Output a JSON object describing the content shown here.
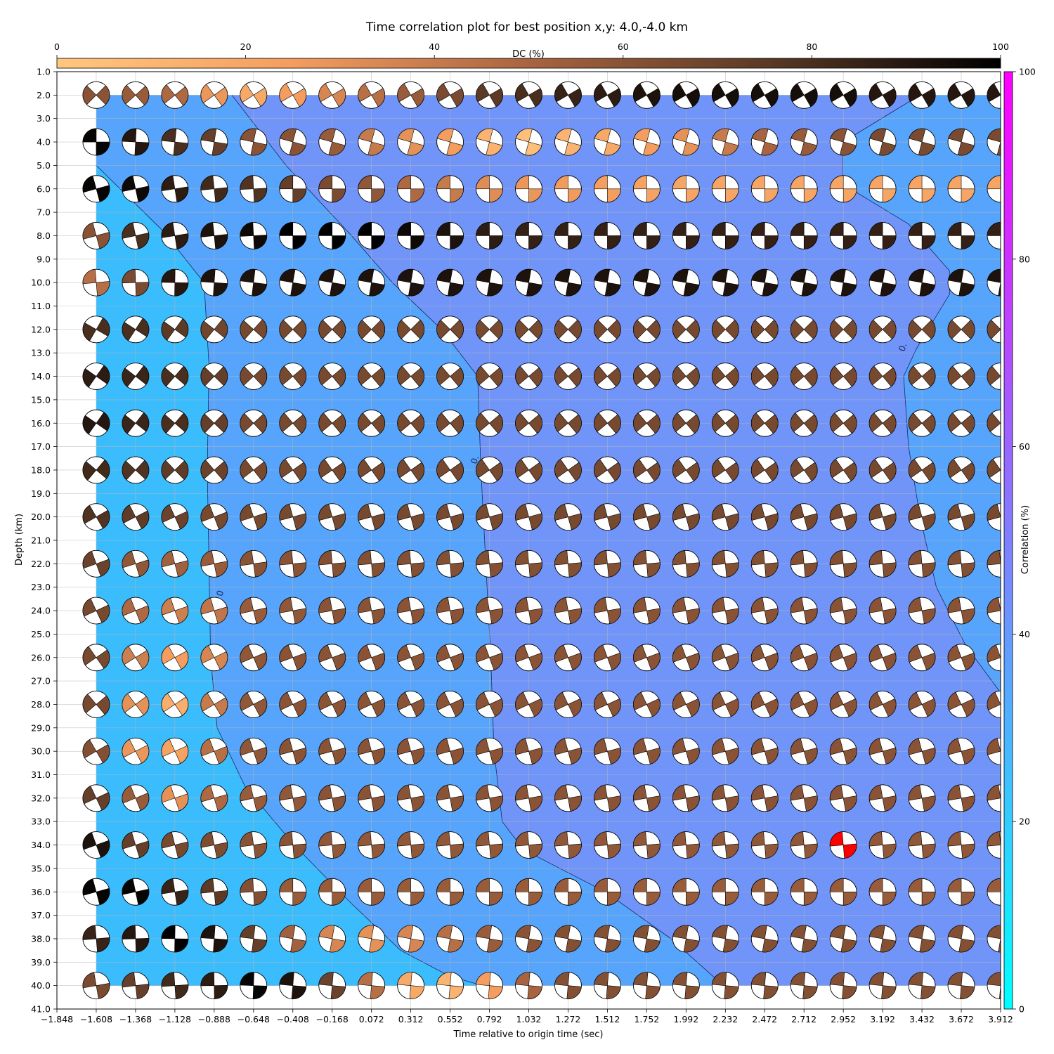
{
  "chart_data": {
    "type": "heatmap",
    "title": "Time correlation plot for best position x,y: 4.0,-4.0 km",
    "xlabel": "Time relative to origin time (sec)",
    "ylabel": "Depth (km)",
    "xlim": [
      -1.848,
      3.912
    ],
    "ylim": [
      41.0,
      1.0
    ],
    "y_inverted": true,
    "grid": true,
    "x_ticks": [
      "−1.848",
      "−1.608",
      "−1.368",
      "−1.128",
      "−0.888",
      "−0.648",
      "−0.408",
      "−0.168",
      "0.072",
      "0.312",
      "0.552",
      "0.792",
      "1.032",
      "1.272",
      "1.512",
      "1.752",
      "1.992",
      "2.232",
      "2.472",
      "2.712",
      "2.952",
      "3.192",
      "3.432",
      "3.672",
      "3.912"
    ],
    "y_ticks": [
      "1.0",
      "2.0",
      "3.0",
      "4.0",
      "5.0",
      "6.0",
      "7.0",
      "8.0",
      "9.0",
      "10.0",
      "11.0",
      "12.0",
      "13.0",
      "14.0",
      "15.0",
      "16.0",
      "17.0",
      "18.0",
      "19.0",
      "20.0",
      "21.0",
      "22.0",
      "23.0",
      "24.0",
      "25.0",
      "26.0",
      "27.0",
      "28.0",
      "29.0",
      "30.0",
      "31.0",
      "32.0",
      "33.0",
      "34.0",
      "35.0",
      "36.0",
      "37.0",
      "38.0",
      "39.0",
      "40.0",
      "41.0"
    ],
    "time_grid": [
      -1.608,
      -1.368,
      -1.128,
      -0.888,
      -0.648,
      -0.408,
      -0.168,
      0.072,
      0.312,
      0.552,
      0.792,
      1.032,
      1.272,
      1.512,
      1.752,
      1.992,
      2.232,
      2.472,
      2.712,
      2.952,
      3.192,
      3.432,
      3.672,
      3.912
    ],
    "depth_grid": [
      2,
      4,
      6,
      8,
      10,
      12,
      14,
      16,
      18,
      20,
      22,
      24,
      26,
      28,
      30,
      32,
      34,
      36,
      38,
      40
    ],
    "correlation_colorbar": {
      "label": "Correlation (%)",
      "range": [
        0,
        100
      ],
      "ticks": [
        "0",
        "20",
        "40",
        "60",
        "80",
        "100"
      ],
      "colors": [
        "#00ffff",
        "#ff00ff"
      ]
    },
    "dc_colorbar": {
      "label": "DC (%)",
      "range": [
        0,
        100
      ],
      "ticks": [
        "0",
        "20",
        "40",
        "60",
        "80",
        "100"
      ],
      "colors": [
        "#ffc77f",
        "#f49d5f",
        "#a86440",
        "#5c3a26",
        "#000000"
      ]
    },
    "correlation_zones": [
      {
        "correlation_pct": 30,
        "color": "#3bbcfc",
        "boundary": [
          [
            -1.608,
            5.0
          ],
          [
            -1.2,
            7.8
          ],
          [
            -0.95,
            10.0
          ],
          [
            -0.92,
            13.5
          ],
          [
            -0.93,
            18.0
          ],
          [
            -0.92,
            22.0
          ],
          [
            -0.91,
            26.0
          ],
          [
            -0.87,
            29.0
          ],
          [
            -0.7,
            31.5
          ],
          [
            -0.4,
            34.0
          ],
          [
            -0.05,
            36.5
          ],
          [
            0.25,
            38.5
          ],
          [
            0.55,
            39.6
          ],
          [
            0.75,
            40.0
          ]
        ]
      },
      {
        "correlation_pct": 40,
        "color": "#56a4fb",
        "boundary": [
          [
            -0.78,
            2.0
          ],
          [
            -0.45,
            5.0
          ],
          [
            -0.05,
            8.0
          ],
          [
            0.2,
            10.0
          ],
          [
            0.5,
            12.0
          ],
          [
            0.72,
            14.0
          ],
          [
            0.74,
            18.0
          ],
          [
            0.77,
            22.0
          ],
          [
            0.8,
            26.0
          ],
          [
            0.82,
            30.0
          ],
          [
            0.87,
            33.0
          ],
          [
            1.0,
            34.2
          ],
          [
            1.5,
            36.0
          ],
          [
            1.9,
            38.0
          ],
          [
            2.22,
            40.0
          ]
        ]
      },
      {
        "correlation_pct": 48,
        "color": "#7094f8"
      },
      {
        "correlation_pct": 40,
        "color": "#56a4fb",
        "right_region": true,
        "boundary": [
          [
            3.42,
            2.0
          ],
          [
            2.95,
            4.0
          ],
          [
            2.95,
            5.8
          ],
          [
            3.35,
            7.5
          ],
          [
            3.6,
            9.5
          ],
          [
            3.6,
            10.5
          ],
          [
            3.4,
            12.8
          ],
          [
            3.32,
            14.0
          ],
          [
            3.35,
            17.0
          ],
          [
            3.42,
            20.0
          ],
          [
            3.52,
            23.0
          ],
          [
            3.7,
            25.5
          ],
          [
            3.912,
            27.5
          ]
        ]
      }
    ],
    "contour_labels": [
      {
        "text": "0.",
        "x": 3.332,
        "y": 12.8
      },
      {
        "text": "0.",
        "x": 0.72,
        "y": 17.6
      },
      {
        "text": "0",
        "x": -0.835,
        "y": 23.3
      }
    ],
    "best_solution": {
      "time": 2.952,
      "depth": 34.0,
      "color": "#ff0000"
    },
    "dc_bands_by_depth": [
      {
        "depth": 2,
        "dc_pct": [
          60,
          55,
          48,
          28,
          18,
          25,
          35,
          45,
          55,
          65,
          75,
          80,
          85,
          88,
          92,
          94,
          94,
          94,
          94,
          94,
          90,
          90,
          90,
          90
        ]
      },
      {
        "depth": 4,
        "dc_pct": [
          98,
          90,
          80,
          72,
          60,
          60,
          55,
          40,
          30,
          25,
          12,
          5,
          12,
          18,
          25,
          30,
          40,
          50,
          55,
          60,
          65,
          65,
          65,
          65
        ]
      },
      {
        "depth": 6,
        "dc_pct": [
          98,
          96,
          88,
          82,
          78,
          72,
          65,
          58,
          48,
          40,
          32,
          28,
          26,
          24,
          22,
          20,
          20,
          20,
          20,
          20,
          20,
          20,
          20,
          20
        ]
      },
      {
        "depth": 8,
        "dc_pct": [
          60,
          80,
          88,
          92,
          96,
          100,
          100,
          100,
          96,
          92,
          88,
          86,
          86,
          86,
          86,
          86,
          86,
          86,
          86,
          86,
          86,
          86,
          86,
          86
        ]
      },
      {
        "depth": 10,
        "dc_pct": [
          45,
          65,
          90,
          92,
          92,
          92,
          92,
          92,
          92,
          92,
          92,
          92,
          92,
          92,
          92,
          92,
          92,
          92,
          92,
          92,
          92,
          92,
          92,
          92
        ]
      },
      {
        "depth": 12,
        "dc_pct": [
          80,
          80,
          75,
          68,
          66,
          66,
          66,
          66,
          66,
          66,
          66,
          66,
          66,
          66,
          66,
          66,
          66,
          66,
          66,
          66,
          66,
          66,
          66,
          66
        ]
      },
      {
        "depth": 14,
        "dc_pct": [
          88,
          84,
          80,
          72,
          66,
          66,
          66,
          66,
          66,
          66,
          66,
          66,
          66,
          66,
          66,
          66,
          66,
          66,
          66,
          66,
          66,
          66,
          66,
          66
        ]
      },
      {
        "depth": 16,
        "dc_pct": [
          90,
          84,
          80,
          72,
          66,
          66,
          66,
          66,
          66,
          66,
          66,
          66,
          66,
          66,
          66,
          66,
          66,
          66,
          66,
          66,
          66,
          66,
          66,
          66
        ]
      },
      {
        "depth": 18,
        "dc_pct": [
          82,
          78,
          74,
          70,
          66,
          66,
          66,
          66,
          66,
          66,
          66,
          66,
          66,
          66,
          66,
          66,
          66,
          66,
          66,
          66,
          66,
          66,
          66,
          66
        ]
      },
      {
        "depth": 20,
        "dc_pct": [
          78,
          74,
          70,
          66,
          66,
          66,
          66,
          66,
          66,
          66,
          66,
          66,
          66,
          66,
          66,
          66,
          66,
          66,
          66,
          66,
          66,
          66,
          66,
          66
        ]
      },
      {
        "depth": 22,
        "dc_pct": [
          70,
          58,
          52,
          55,
          60,
          60,
          62,
          62,
          62,
          62,
          62,
          62,
          62,
          62,
          62,
          62,
          62,
          62,
          62,
          62,
          62,
          62,
          62,
          62
        ]
      },
      {
        "depth": 24,
        "dc_pct": [
          66,
          48,
          38,
          42,
          55,
          58,
          60,
          60,
          60,
          60,
          60,
          60,
          60,
          60,
          60,
          60,
          60,
          60,
          60,
          60,
          60,
          60,
          60,
          60
        ]
      },
      {
        "depth": 26,
        "dc_pct": [
          66,
          38,
          25,
          35,
          58,
          60,
          60,
          60,
          60,
          60,
          60,
          60,
          60,
          60,
          60,
          60,
          60,
          60,
          60,
          60,
          60,
          60,
          60,
          60
        ]
      },
      {
        "depth": 28,
        "dc_pct": [
          66,
          30,
          15,
          40,
          58,
          60,
          60,
          60,
          60,
          60,
          60,
          60,
          60,
          60,
          60,
          60,
          60,
          60,
          60,
          60,
          60,
          60,
          60,
          60
        ]
      },
      {
        "depth": 30,
        "dc_pct": [
          62,
          28,
          22,
          45,
          58,
          60,
          60,
          60,
          60,
          60,
          60,
          60,
          60,
          60,
          60,
          60,
          60,
          60,
          60,
          60,
          60,
          60,
          60,
          60
        ]
      },
      {
        "depth": 32,
        "dc_pct": [
          72,
          55,
          30,
          48,
          55,
          58,
          60,
          60,
          60,
          60,
          60,
          60,
          60,
          60,
          60,
          60,
          60,
          60,
          60,
          60,
          60,
          60,
          60,
          60
        ]
      },
      {
        "depth": 34,
        "dc_pct": [
          92,
          72,
          66,
          64,
          60,
          60,
          58,
          58,
          58,
          58,
          58,
          58,
          58,
          58,
          58,
          58,
          58,
          58,
          58,
          58,
          58,
          58,
          58,
          58
        ]
      },
      {
        "depth": 36,
        "dc_pct": [
          98,
          98,
          85,
          75,
          62,
          55,
          55,
          55,
          55,
          55,
          55,
          55,
          55,
          55,
          55,
          55,
          55,
          55,
          55,
          55,
          55,
          55,
          55,
          55
        ]
      },
      {
        "depth": 38,
        "dc_pct": [
          85,
          90,
          100,
          92,
          72,
          52,
          35,
          30,
          35,
          45,
          55,
          60,
          62,
          62,
          62,
          62,
          62,
          62,
          62,
          62,
          62,
          62,
          62,
          62
        ]
      },
      {
        "depth": 40,
        "dc_pct": [
          65,
          72,
          82,
          88,
          98,
          92,
          70,
          45,
          18,
          12,
          25,
          50,
          62,
          62,
          62,
          62,
          62,
          62,
          62,
          62,
          62,
          62,
          62,
          62
        ]
      }
    ]
  }
}
